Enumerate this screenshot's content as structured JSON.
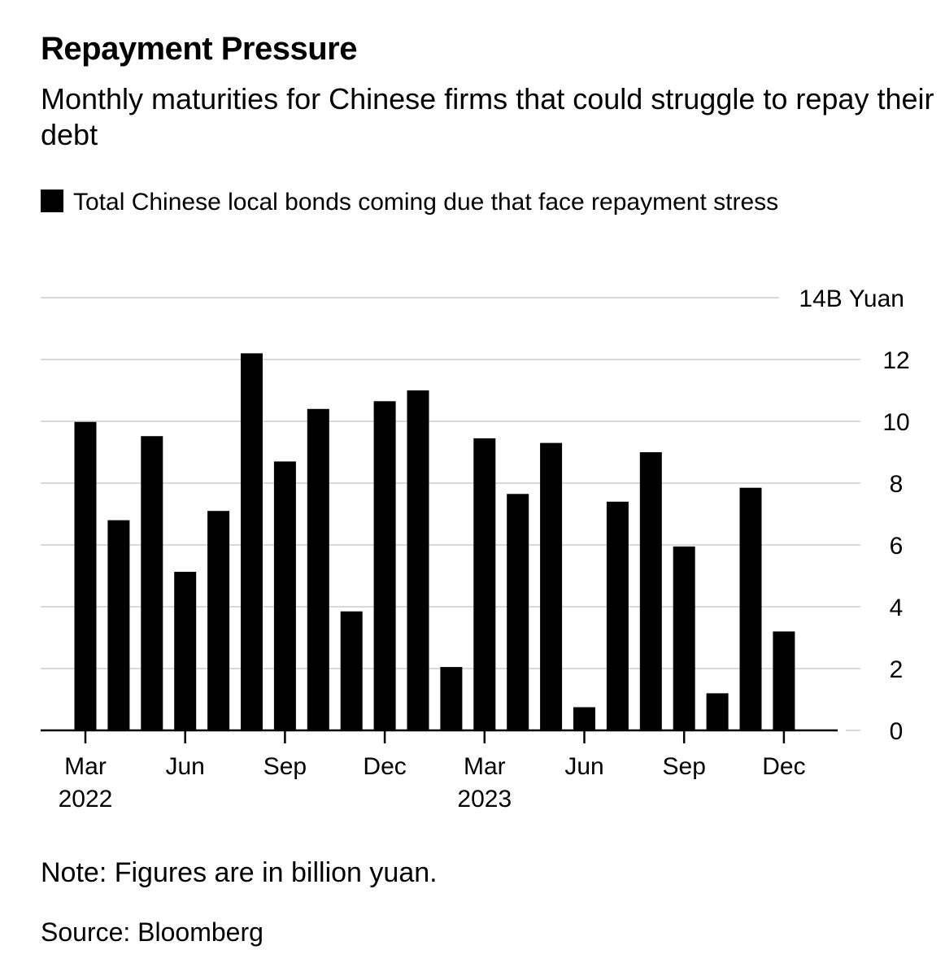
{
  "title": "Repayment Pressure",
  "subtitle": "Monthly maturities for Chinese firms that could struggle to repay their debt",
  "legend_label": "Total Chinese local bonds coming due that face repayment stress",
  "note": "Note: Figures are in billion yuan.",
  "source": "Source: Bloomberg",
  "colors": {
    "bar": "#000000",
    "grid": "#d9d9d9",
    "background": "#ffffff"
  },
  "chart_data": {
    "type": "bar",
    "categories": [
      "Mar 2022",
      "Apr 2022",
      "May 2022",
      "Jun 2022",
      "Jul 2022",
      "Aug 2022",
      "Sep 2022",
      "Oct 2022",
      "Nov 2022",
      "Dec 2022",
      "Jan 2023",
      "Feb 2023",
      "Mar 2023",
      "Apr 2023",
      "May 2023",
      "Jun 2023",
      "Jul 2023",
      "Aug 2023",
      "Sep 2023",
      "Oct 2023",
      "Nov 2023",
      "Dec 2023"
    ],
    "series": [
      {
        "name": "Total Chinese local bonds coming due that face repayment stress",
        "values": [
          9.98,
          6.8,
          9.52,
          5.13,
          7.1,
          12.2,
          8.7,
          10.4,
          3.85,
          10.65,
          11.0,
          2.05,
          9.45,
          7.65,
          9.3,
          0.75,
          7.4,
          9.0,
          5.95,
          1.2,
          7.85,
          3.2
        ]
      }
    ],
    "ylim": [
      0,
      14
    ],
    "y_ticks": [
      "0",
      "2",
      "4",
      "6",
      "8",
      "10",
      "12",
      "14"
    ],
    "y_unit": "B Yuan",
    "x_ticks": [
      {
        "label": "Mar",
        "index": 0,
        "year": "2022"
      },
      {
        "label": "Jun",
        "index": 3
      },
      {
        "label": "Sep",
        "index": 6
      },
      {
        "label": "Dec",
        "index": 9
      },
      {
        "label": "Mar",
        "index": 12,
        "year": "2023"
      },
      {
        "label": "Jun",
        "index": 15
      },
      {
        "label": "Sep",
        "index": 18
      },
      {
        "label": "Dec",
        "index": 21
      }
    ],
    "grid": true,
    "legend_position": "top-left"
  }
}
